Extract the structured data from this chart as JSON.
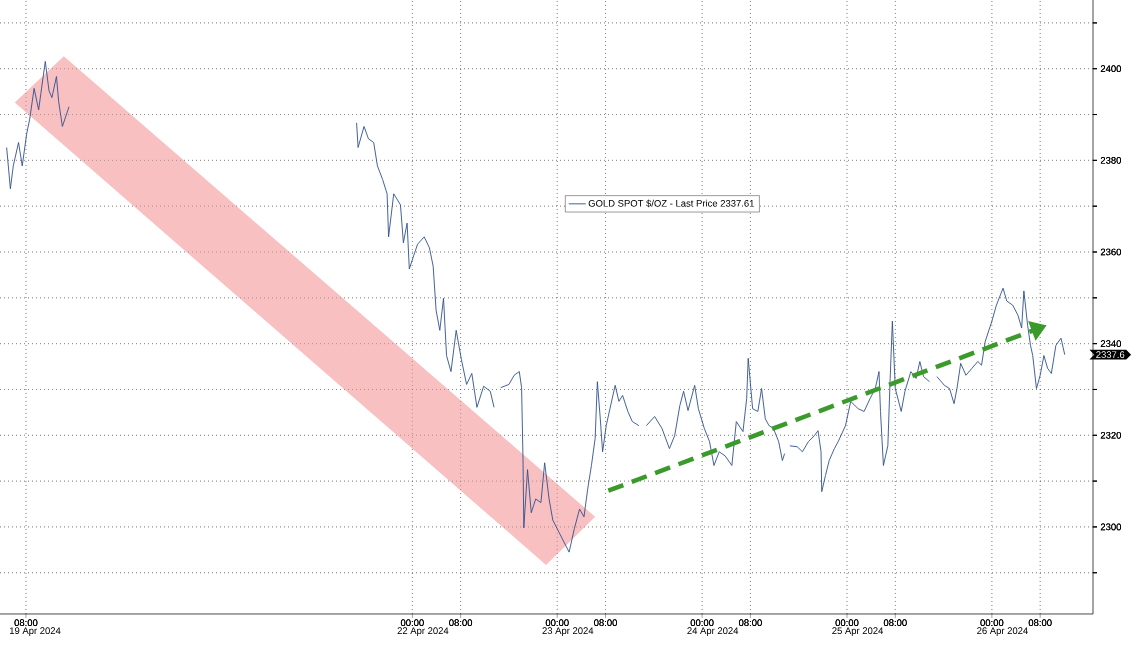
{
  "chart_data": {
    "type": "line",
    "x": [
      "2024-04-19T04:48",
      "2024-04-19T05:25",
      "2024-04-19T05:54",
      "2024-04-19T06:46",
      "2024-04-19T07:23",
      "2024-04-19T08:07",
      "2024-04-19T08:37",
      "2024-04-19T09:21",
      "2024-04-19T10:06",
      "2024-04-19T10:28",
      "2024-04-19T11:12",
      "2024-04-19T11:49",
      "2024-04-19T12:18",
      "2024-04-19T13:03",
      "2024-04-19T13:25",
      "2024-04-19T14:02",
      "2024-04-19T15:08",
      null,
      "2024-04-21T14:46",
      "2024-04-21T15:01",
      "2024-04-21T16:00",
      "2024-04-21T16:44",
      "2024-04-21T17:36",
      "2024-04-21T18:13",
      "2024-04-21T19:05",
      "2024-04-21T19:49",
      "2024-04-21T20:04",
      "2024-04-21T20:55",
      "2024-04-21T22:02",
      "2024-04-21T22:31",
      "2024-04-21T23:08",
      "2024-04-21T23:30",
      "2024-04-22T00:15",
      "2024-04-22T00:52",
      "2024-04-22T01:58",
      "2024-04-22T02:50",
      "2024-04-22T03:27",
      "2024-04-22T03:56",
      "2024-04-22T04:33",
      "2024-04-22T05:10",
      "2024-04-22T05:40",
      "2024-04-22T06:24",
      "2024-04-22T07:16",
      "2024-04-22T08:07",
      "2024-04-22T08:59",
      "2024-04-22T09:51",
      "2024-04-22T10:42",
      "2024-04-22T11:49",
      "2024-04-22T12:55",
      "2024-04-22T13:32",
      null,
      "2024-04-22T14:39",
      "2024-04-22T16:00",
      "2024-04-22T16:52",
      "2024-04-22T17:43",
      "2024-04-22T18:06",
      "2024-04-22T18:20",
      "2024-04-22T18:28",
      "2024-04-22T19:05",
      "2024-04-22T19:42",
      "2024-04-22T20:26",
      "2024-04-22T21:18",
      "2024-04-22T21:55",
      "2024-04-22T22:39",
      "2024-04-22T23:16",
      "2024-04-23T01:58",
      "2024-04-23T02:50",
      "2024-04-23T03:42",
      "2024-04-23T04:26",
      "2024-04-23T05:03",
      "2024-04-23T05:40",
      "2024-04-23T06:17",
      "2024-04-23T06:39",
      "2024-04-23T07:08",
      "2024-04-23T07:31",
      "2024-04-23T08:07",
      "2024-04-23T08:44",
      "2024-04-23T09:36",
      "2024-04-23T10:13",
      "2024-04-23T10:50",
      "2024-04-23T11:42",
      "2024-04-23T12:26",
      "2024-04-23T13:32",
      null,
      "2024-04-23T14:46",
      "2024-04-23T16:08",
      "2024-04-23T17:21",
      "2024-04-23T18:35",
      "2024-04-23T19:27",
      "2024-04-23T20:19",
      "2024-04-23T20:56",
      "2024-04-23T21:40",
      "2024-04-23T22:46",
      "2024-04-23T23:23",
      "2024-04-24T00:22",
      "2024-04-24T01:14",
      "2024-04-24T01:58",
      "2024-04-24T02:50",
      "2024-04-24T03:49",
      "2024-04-24T04:56",
      "2024-04-24T05:40",
      "2024-04-24T06:46",
      "2024-04-24T07:23",
      "2024-04-24T07:38",
      "2024-04-24T08:22",
      "2024-04-24T09:14",
      "2024-04-24T09:51",
      "2024-04-24T10:28",
      "2024-04-24T11:05",
      "2024-04-24T11:49",
      "2024-04-24T12:41",
      "2024-04-24T13:18",
      "2024-04-24T13:40",
      null,
      "2024-04-24T14:32",
      "2024-04-24T15:45",
      "2024-04-24T16:37",
      "2024-04-24T17:36",
      "2024-04-24T18:35",
      "2024-04-24T19:12",
      "2024-04-24T19:42",
      "2024-04-24T19:49",
      "2024-04-24T20:26",
      "2024-04-24T21:03",
      "2024-04-24T21:55",
      "2024-04-24T22:32",
      "2024-04-24T23:45",
      "2024-04-25T00:37",
      "2024-04-25T01:51",
      "2024-04-25T02:50",
      "2024-04-25T03:49",
      "2024-04-25T04:41",
      "2024-04-25T05:18",
      "2024-04-25T05:33",
      "2024-04-25T06:02",
      "2024-04-25T06:46",
      "2024-04-25T07:09",
      "2024-04-25T07:31",
      "2024-04-25T08:00",
      "2024-04-25T08:59",
      "2024-04-25T09:36",
      "2024-04-25T10:35",
      "2024-04-25T11:27",
      "2024-04-25T12:04",
      "2024-04-25T12:41",
      "2024-04-25T13:40",
      null,
      "2024-04-25T14:54",
      "2024-04-25T16:08",
      "2024-04-25T16:59",
      "2024-04-25T17:44",
      "2024-04-25T18:13",
      "2024-04-25T18:50",
      "2024-04-25T19:42",
      "2024-04-25T20:41",
      "2024-04-25T21:40",
      "2024-04-25T22:17",
      "2024-04-25T22:54",
      "2024-04-26T00:00",
      "2024-04-26T00:45",
      "2024-04-26T01:51",
      "2024-04-26T02:28",
      "2024-04-26T03:27",
      "2024-04-26T04:19",
      "2024-04-26T04:56",
      "2024-04-26T05:18",
      "2024-04-26T05:55",
      "2024-04-26T06:24",
      "2024-04-26T06:46",
      "2024-04-26T07:23",
      "2024-04-26T08:00",
      "2024-04-26T08:37",
      "2024-04-26T09:14",
      "2024-04-26T09:51",
      "2024-04-26T10:36",
      "2024-04-26T11:27",
      "2024-04-26T12:04"
    ],
    "series": [
      {
        "name": "GOLD SPOT $/OZ - Last Price 2337.61",
        "color": "#2f4f8f",
        "values": [
          2382.8,
          2373.8,
          2378.8,
          2383.9,
          2378.8,
          2385.8,
          2389.0,
          2395.7,
          2391.0,
          2394.6,
          2401.6,
          2395.2,
          2393.7,
          2398.3,
          2392.8,
          2387.4,
          2391.7,
          null,
          2388.2,
          2382.8,
          2387.4,
          2384.7,
          2383.9,
          2378.8,
          2375.8,
          2372.7,
          2363.3,
          2372.7,
          2370.3,
          2362.0,
          2366.3,
          2356.3,
          2359.3,
          2361.7,
          2363.3,
          2360.9,
          2356.9,
          2347.3,
          2342.9,
          2349.9,
          2337.4,
          2333.9,
          2342.9,
          2336.6,
          2331.1,
          2333.5,
          2326.1,
          2330.7,
          2329.6,
          2326.1,
          null,
          2330.4,
          2331.1,
          2333.1,
          2333.9,
          2330.4,
          2314.7,
          2299.8,
          2312.5,
          2303.1,
          2306.1,
          2305.3,
          2314.0,
          2306.1,
          2301.5,
          2294.5,
          2299.6,
          2303.9,
          2302.2,
          2308.3,
          2313.4,
          2319.3,
          2331.7,
          2323.6,
          2316.4,
          2322.1,
          2325.8,
          2330.9,
          2327.4,
          2328.7,
          2325.2,
          2323.0,
          2322.1,
          null,
          2322.1,
          2324.1,
          2321.5,
          2317.1,
          2319.9,
          2326.5,
          2329.6,
          2325.4,
          2330.9,
          2325.8,
          2321.5,
          2318.6,
          2313.4,
          2316.4,
          2315.5,
          2313.4,
          2323.0,
          2320.8,
          2328.0,
          2336.8,
          2325.8,
          2325.2,
          2330.2,
          2323.6,
          2322.1,
          2321.5,
          2318.6,
          2314.5,
          2316.0,
          null,
          2317.7,
          2317.5,
          2316.4,
          2318.6,
          2319.9,
          2321.0,
          2316.4,
          2307.7,
          2311.2,
          2314.5,
          2317.1,
          2318.6,
          2322.1,
          2327.4,
          2325.8,
          2325.2,
          2328.0,
          2330.2,
          2333.9,
          2325.2,
          2313.4,
          2317.7,
          2332.4,
          2344.9,
          2330.2,
          2325.2,
          2329.6,
          2333.9,
          2332.4,
          2336.1,
          2332.8,
          2331.7,
          null,
          2332.8,
          2330.9,
          2330.2,
          2326.9,
          2330.2,
          2335.7,
          2333.1,
          2334.6,
          2336.1,
          2335.3,
          2340.5,
          2344.9,
          2348.4,
          2352.1,
          2349.3,
          2348.4,
          2346.2,
          2343.4,
          2351.5,
          2344.0,
          2339.6,
          2337.4,
          2330.2,
          2333.1,
          2337.4,
          2334.6,
          2333.5,
          2339.6,
          2341.2,
          2337.6
        ]
      }
    ],
    "xlim": [
      "2024-04-19T03:42",
      "2024-04-26T16:45"
    ],
    "xticks": [
      {
        "value": "2024-04-19T08:00",
        "label": "08:00"
      },
      {
        "value": "2024-04-22T00:00",
        "label": "00:00"
      },
      {
        "value": "2024-04-22T08:00",
        "label": "08:00"
      },
      {
        "value": "2024-04-23T00:00",
        "label": "00:00"
      },
      {
        "value": "2024-04-23T08:00",
        "label": "08:00"
      },
      {
        "value": "2024-04-24T00:00",
        "label": "00:00"
      },
      {
        "value": "2024-04-24T08:00",
        "label": "08:00"
      },
      {
        "value": "2024-04-25T00:00",
        "label": "00:00"
      },
      {
        "value": "2024-04-25T08:00",
        "label": "08:00"
      },
      {
        "value": "2024-04-26T00:00",
        "label": "00:00"
      },
      {
        "value": "2024-04-26T08:00",
        "label": "08:00"
      }
    ],
    "x2lim": [
      "2024-04-19T03:42",
      "2024-04-26T16:45"
    ],
    "x2ticks": [
      {
        "value": "2024-04-19T09:30",
        "label": "19 Apr 2024"
      },
      {
        "value": "2024-04-22T01:45",
        "label": "22 Apr 2024"
      },
      {
        "value": "2024-04-23T01:45",
        "label": "23 Apr 2024"
      },
      {
        "value": "2024-04-24T01:45",
        "label": "24 Apr 2024"
      },
      {
        "value": "2024-04-25T01:45",
        "label": "25 Apr 2024"
      },
      {
        "value": "2024-04-26T01:45",
        "label": "26 Apr 2024"
      }
    ],
    "ylim": [
      2281,
      2415
    ],
    "yticks": [
      {
        "value": 2290,
        "label": null
      },
      2300,
      {
        "value": 2310,
        "label": null
      },
      2320,
      {
        "value": 2330,
        "label": null
      },
      2340,
      {
        "value": 2350,
        "label": null
      },
      2360,
      {
        "value": 2370,
        "label": null
      },
      2380,
      {
        "value": 2390,
        "label": null
      },
      2400,
      {
        "value": 2410,
        "label": null
      }
    ],
    "annotations": [
      "2337.6"
    ],
    "grid": true,
    "legend": "top",
    "marker": "none",
    "line_style": "solid"
  }
}
